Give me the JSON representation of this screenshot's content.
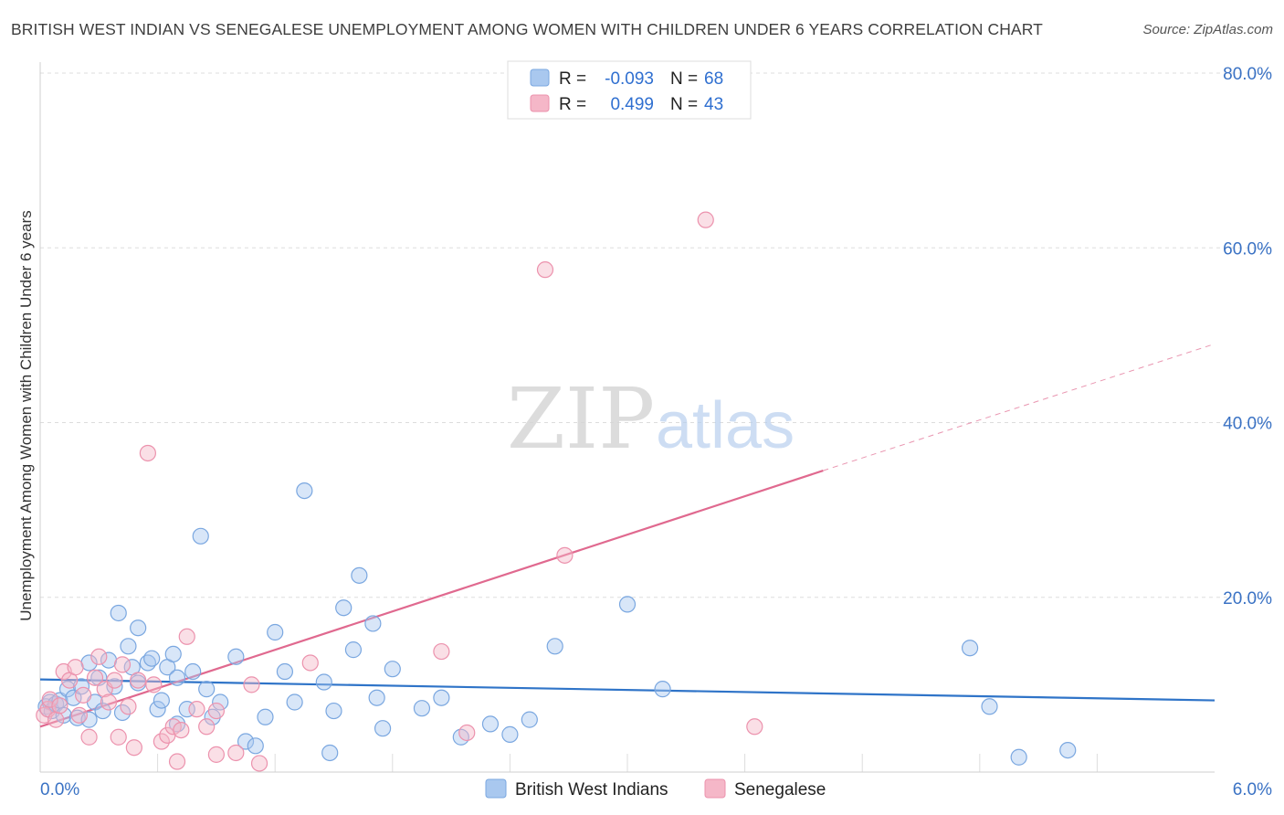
{
  "header": {
    "title": "BRITISH WEST INDIAN VS SENEGALESE UNEMPLOYMENT AMONG WOMEN WITH CHILDREN UNDER 6 YEARS CORRELATION CHART",
    "source": "Source: ZipAtlas.com"
  },
  "watermark": {
    "zip": "ZIP",
    "atlas": "atlas"
  },
  "legend": {
    "r_label": "R =",
    "n_label": "N =",
    "rows": [
      {
        "r": "-0.093",
        "n": "68"
      },
      {
        "r": "0.499",
        "n": "43"
      }
    ]
  },
  "colors": {
    "blue_fill": "#a9c8ef",
    "blue_stroke": "#7aa7e0",
    "blue_line": "#2f74c8",
    "pink_fill": "#f5b7c8",
    "pink_stroke": "#ec92ad",
    "pink_line": "#e0698f",
    "grid": "#dddddd",
    "tick_label": "#3a72c4"
  },
  "chart_data": {
    "type": "scatter",
    "ylabel": "Unemployment Among Women with Children Under 6 years",
    "xlim": [
      0,
      6
    ],
    "ylim": [
      0,
      80
    ],
    "y_ticks": [
      {
        "value": 20,
        "label": "20.0%"
      },
      {
        "value": 40,
        "label": "40.0%"
      },
      {
        "value": 60,
        "label": "60.0%"
      },
      {
        "value": 80,
        "label": "80.0%"
      }
    ],
    "x_tick_labels": [
      {
        "value": 0,
        "label": "0.0%"
      },
      {
        "value": 6,
        "label": "6.0%"
      }
    ],
    "series": [
      {
        "name": "British West Indians",
        "color": "#7aa7e0",
        "points": [
          [
            0.03,
            7.5
          ],
          [
            0.05,
            8.0
          ],
          [
            0.06,
            7.0
          ],
          [
            0.08,
            7.8
          ],
          [
            0.1,
            8.2
          ],
          [
            0.12,
            6.5
          ],
          [
            0.14,
            9.5
          ],
          [
            0.17,
            8.5
          ],
          [
            0.19,
            6.2
          ],
          [
            0.21,
            9.8
          ],
          [
            0.25,
            6.0
          ],
          [
            0.28,
            8.0
          ],
          [
            0.3,
            10.8
          ],
          [
            0.32,
            7.0
          ],
          [
            0.35,
            12.8
          ],
          [
            0.38,
            9.8
          ],
          [
            0.4,
            18.2
          ],
          [
            0.42,
            6.8
          ],
          [
            0.45,
            14.4
          ],
          [
            0.47,
            12.0
          ],
          [
            0.5,
            10.2
          ],
          [
            0.55,
            12.5
          ],
          [
            0.57,
            13.0
          ],
          [
            0.6,
            7.2
          ],
          [
            0.62,
            8.2
          ],
          [
            0.65,
            12.0
          ],
          [
            0.68,
            13.5
          ],
          [
            0.7,
            10.8
          ],
          [
            0.75,
            7.2
          ],
          [
            0.78,
            11.5
          ],
          [
            0.82,
            27.0
          ],
          [
            0.85,
            9.5
          ],
          [
            0.88,
            6.3
          ],
          [
            0.92,
            8.0
          ],
          [
            1.0,
            13.2
          ],
          [
            1.05,
            3.5
          ],
          [
            1.1,
            3.0
          ],
          [
            1.15,
            6.3
          ],
          [
            1.2,
            16.0
          ],
          [
            1.25,
            11.5
          ],
          [
            1.3,
            8.0
          ],
          [
            1.35,
            32.2
          ],
          [
            1.45,
            10.3
          ],
          [
            1.48,
            2.2
          ],
          [
            1.5,
            7.0
          ],
          [
            1.55,
            18.8
          ],
          [
            1.6,
            14.0
          ],
          [
            1.63,
            22.5
          ],
          [
            1.7,
            17.0
          ],
          [
            1.72,
            8.5
          ],
          [
            1.75,
            5.0
          ],
          [
            1.8,
            11.8
          ],
          [
            1.95,
            7.3
          ],
          [
            2.05,
            8.5
          ],
          [
            2.15,
            4.0
          ],
          [
            2.3,
            5.5
          ],
          [
            2.4,
            4.3
          ],
          [
            2.5,
            6.0
          ],
          [
            2.63,
            14.4
          ],
          [
            3.0,
            19.2
          ],
          [
            3.18,
            9.5
          ],
          [
            4.75,
            14.2
          ],
          [
            4.85,
            7.5
          ],
          [
            5.0,
            1.7
          ],
          [
            5.25,
            2.5
          ],
          [
            0.25,
            12.5
          ],
          [
            0.5,
            16.5
          ],
          [
            0.7,
            5.5
          ]
        ]
      },
      {
        "name": "Senegalese",
        "color": "#ec92ad",
        "points": [
          [
            0.02,
            6.5
          ],
          [
            0.04,
            7.2
          ],
          [
            0.05,
            8.3
          ],
          [
            0.08,
            6.0
          ],
          [
            0.1,
            7.6
          ],
          [
            0.12,
            11.5
          ],
          [
            0.15,
            10.5
          ],
          [
            0.18,
            12.0
          ],
          [
            0.2,
            6.5
          ],
          [
            0.22,
            8.8
          ],
          [
            0.25,
            4.0
          ],
          [
            0.28,
            10.8
          ],
          [
            0.3,
            13.2
          ],
          [
            0.33,
            9.5
          ],
          [
            0.35,
            8.0
          ],
          [
            0.38,
            10.5
          ],
          [
            0.4,
            4.0
          ],
          [
            0.42,
            12.3
          ],
          [
            0.45,
            7.5
          ],
          [
            0.48,
            2.8
          ],
          [
            0.5,
            10.5
          ],
          [
            0.55,
            36.5
          ],
          [
            0.58,
            10.0
          ],
          [
            0.62,
            3.5
          ],
          [
            0.65,
            4.2
          ],
          [
            0.68,
            5.2
          ],
          [
            0.7,
            1.2
          ],
          [
            0.72,
            4.8
          ],
          [
            0.75,
            15.5
          ],
          [
            0.8,
            7.2
          ],
          [
            0.85,
            5.2
          ],
          [
            0.9,
            7.0
          ],
          [
            1.0,
            2.2
          ],
          [
            1.08,
            10.0
          ],
          [
            1.12,
            1.0
          ],
          [
            2.05,
            13.8
          ],
          [
            2.18,
            4.5
          ],
          [
            2.58,
            57.5
          ],
          [
            2.68,
            24.8
          ],
          [
            3.4,
            63.2
          ],
          [
            3.65,
            5.2
          ],
          [
            1.38,
            12.5
          ],
          [
            0.9,
            2.0
          ]
        ]
      }
    ],
    "trend_lines": [
      {
        "series": "British West Indians",
        "x": [
          0,
          6
        ],
        "y": [
          10.6,
          8.2
        ],
        "dashed_from": null
      },
      {
        "series": "Senegalese",
        "x": [
          0,
          4.0,
          6.0
        ],
        "y": [
          5.2,
          34.5,
          49.0
        ],
        "dashed_from": 4.0
      }
    ],
    "grid": true,
    "legend_position": "top-center"
  }
}
